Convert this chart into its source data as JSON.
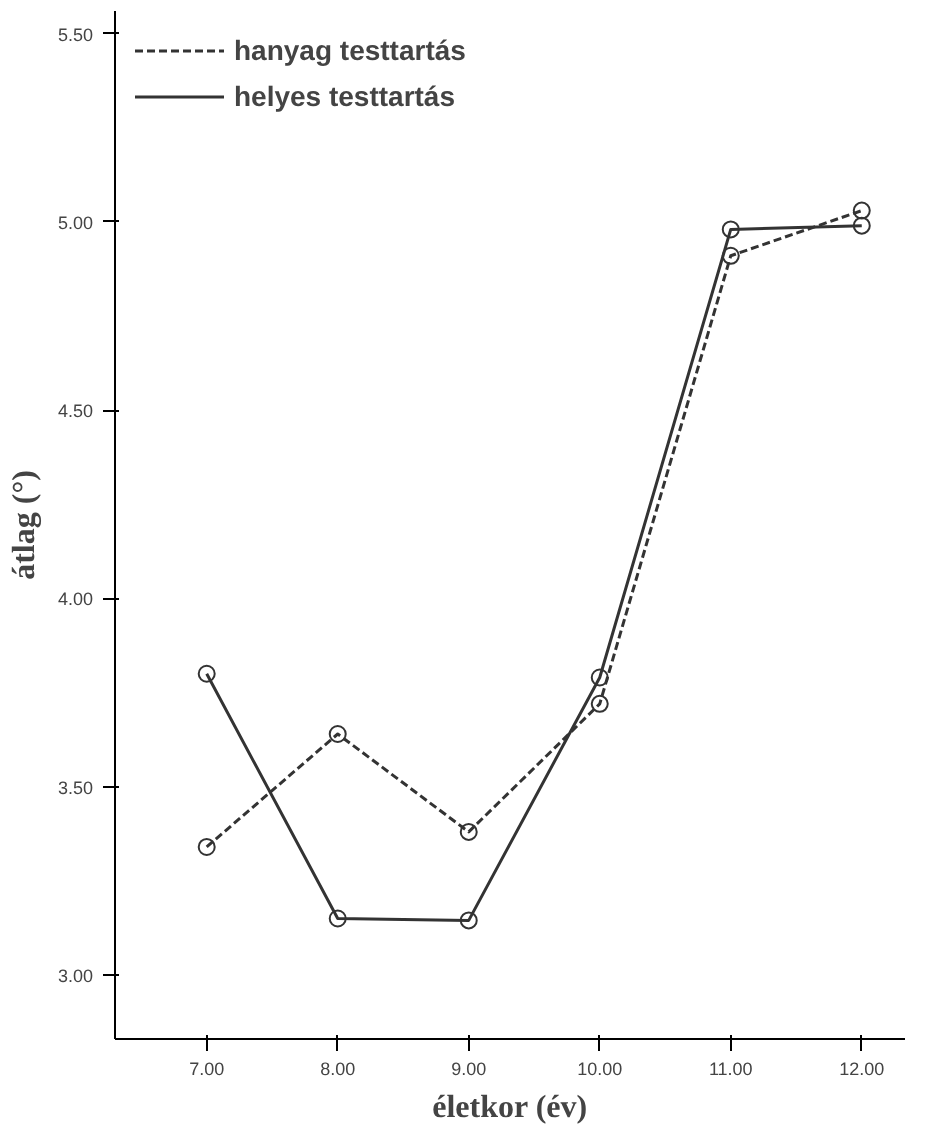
{
  "chart_data": {
    "type": "line",
    "xlabel": "életkor (év)",
    "ylabel": "átlag (°)",
    "x": [
      7,
      8,
      9,
      10,
      11,
      12
    ],
    "series": [
      {
        "name": "hanyag testtartás",
        "color": "#333333",
        "line_style": "dashed",
        "values": [
          3.34,
          3.64,
          3.38,
          3.72,
          4.91,
          5.03
        ]
      },
      {
        "name": "helyes testtartás",
        "color": "#333333",
        "line_style": "solid",
        "values": [
          3.8,
          3.15,
          3.145,
          3.79,
          4.98,
          4.99
        ]
      }
    ],
    "xlim": [
      6.3,
      12.33
    ],
    "ylim": [
      2.83,
      5.56
    ],
    "xticks": [
      {
        "value": 7,
        "label": "7.00"
      },
      {
        "value": 8,
        "label": "8.00"
      },
      {
        "value": 9,
        "label": "9.00"
      },
      {
        "value": 10,
        "label": "10.00"
      },
      {
        "value": 11,
        "label": "11.00"
      },
      {
        "value": 12,
        "label": "12.00"
      }
    ],
    "yticks": [
      {
        "value": 3,
        "label": "3.00"
      },
      {
        "value": 3.5,
        "label": "3.50"
      },
      {
        "value": 4,
        "label": "4.00"
      },
      {
        "value": 4.5,
        "label": "4.50"
      },
      {
        "value": 5,
        "label": "5.00"
      },
      {
        "value": 5.5,
        "label": "5.50"
      }
    ],
    "marker": "circle",
    "grid": false,
    "legend": "top left"
  }
}
